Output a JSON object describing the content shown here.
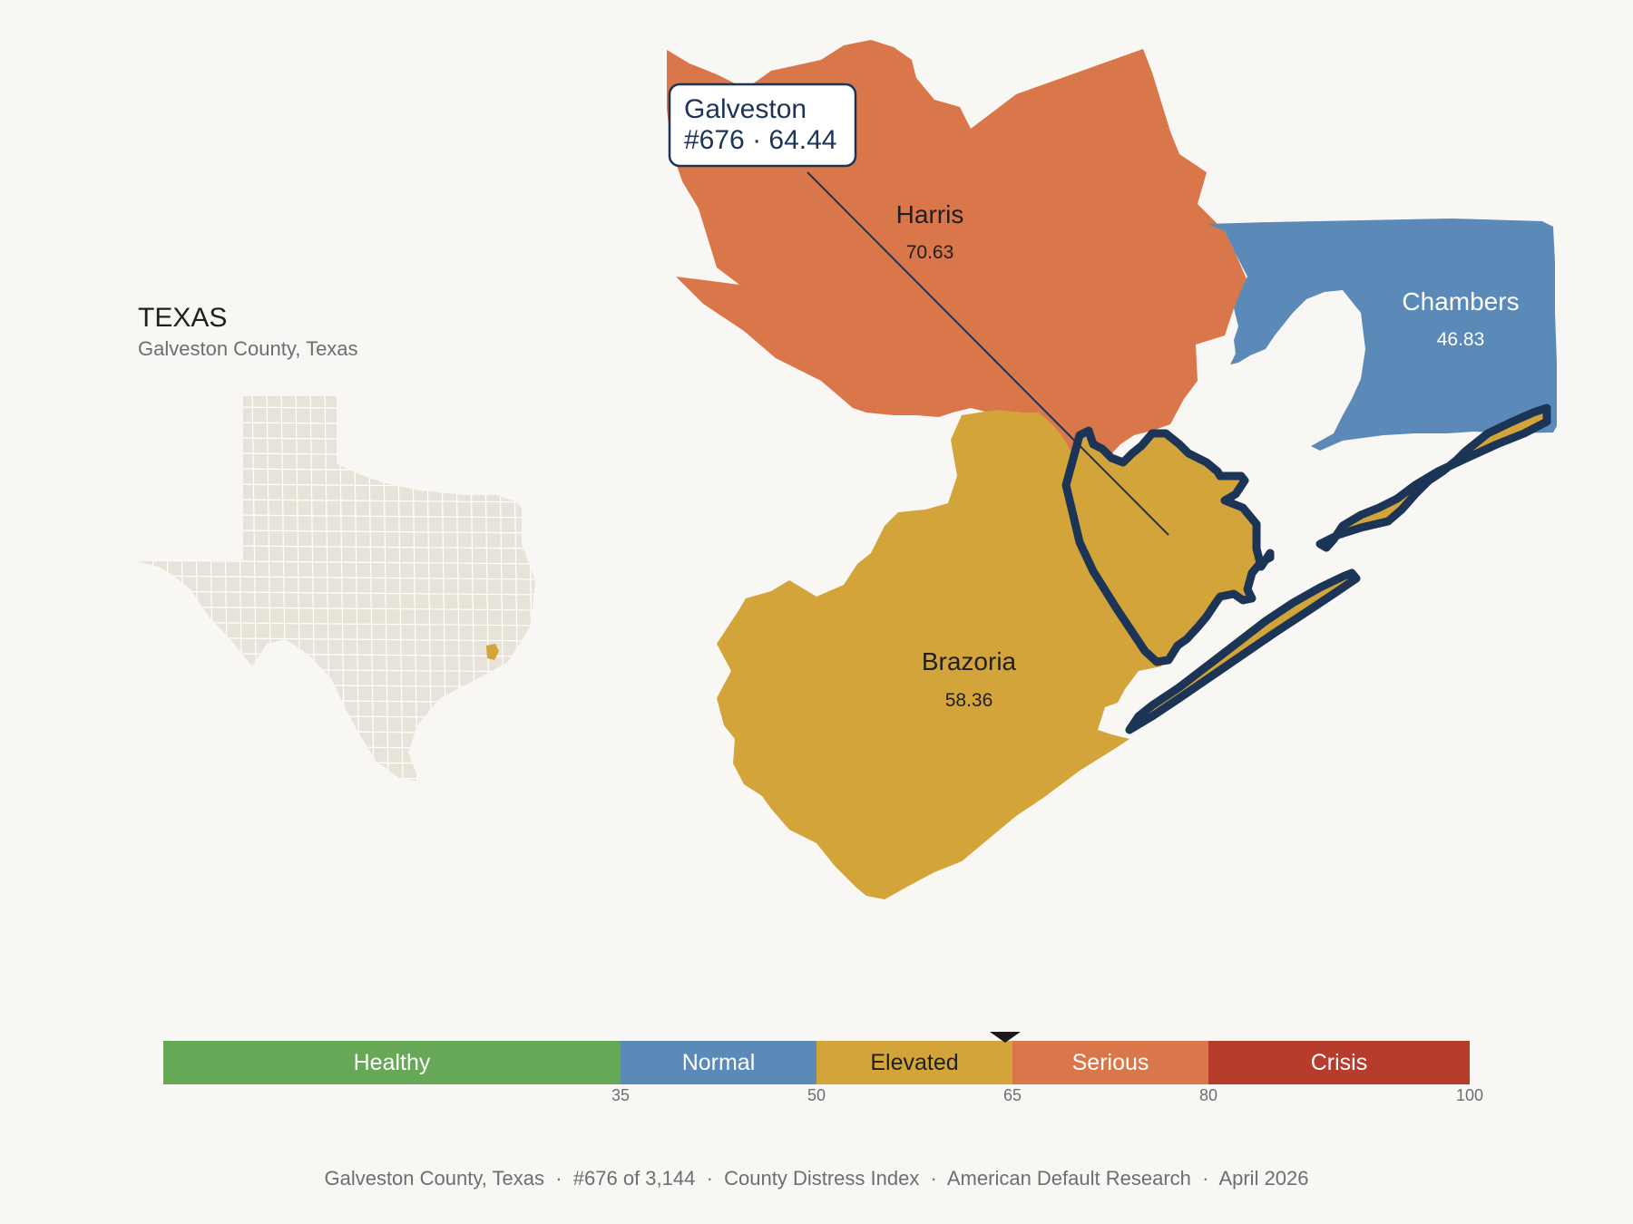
{
  "state": {
    "title": "TEXAS",
    "subtitle": "Galveston County, Texas"
  },
  "counties": [
    {
      "key": "harris",
      "name": "Harris",
      "value": "70.63",
      "fill": "#d9764a",
      "text_color": "#1f1f1f"
    },
    {
      "key": "chambers",
      "name": "Chambers",
      "value": "46.83",
      "fill": "#5b8ab8",
      "text_color": "#ffffff"
    },
    {
      "key": "brazoria",
      "name": "Brazoria",
      "value": "58.36",
      "fill": "#d2a43a",
      "text_color": "#1f1f1f"
    },
    {
      "key": "galveston",
      "name": "Galveston",
      "value": "64.44",
      "fill": "#d2a43a",
      "outline": "#1c3557"
    }
  ],
  "callout": {
    "line1": "Galveston",
    "line2": "#676 · 64.44"
  },
  "scale": {
    "min": 0,
    "max": 100,
    "marker_value": 64.44,
    "marker_color": "#1a1a1a",
    "bands": [
      {
        "label": "Healthy",
        "from": 0,
        "to": 35,
        "color": "#67a857",
        "text_color": "#ffffff"
      },
      {
        "label": "Normal",
        "from": 35,
        "to": 50,
        "color": "#5b8ab8",
        "text_color": "#ffffff"
      },
      {
        "label": "Elevated",
        "from": 50,
        "to": 65,
        "color": "#d2a43a",
        "text_color": "#1f1f1f"
      },
      {
        "label": "Serious",
        "from": 65,
        "to": 80,
        "color": "#d9764a",
        "text_color": "#ffffff"
      },
      {
        "label": "Crisis",
        "from": 80,
        "to": 100,
        "color": "#b83c2b",
        "text_color": "#ffffff"
      }
    ],
    "ticks": [
      "35",
      "50",
      "65",
      "80",
      "100"
    ]
  },
  "footer": {
    "text": "Galveston County, Texas  ·  #676 of 3,144  ·  County Distress Index  ·  American Default Research  ·  April 2026"
  },
  "colors": {
    "background": "#f9f7f3",
    "state_fill": "#e8e3d9",
    "state_lines": "#ffffff",
    "highlight": "#d2a43a",
    "outline": "#1c3557"
  }
}
